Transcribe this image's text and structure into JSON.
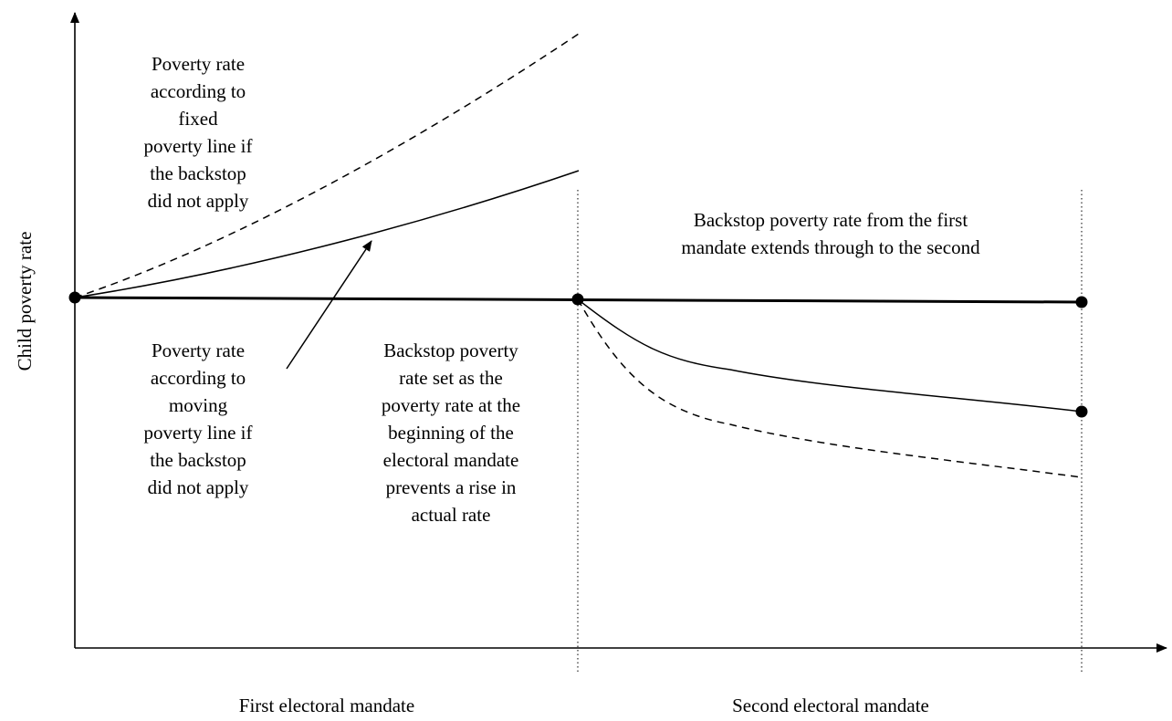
{
  "axes": {
    "y_label": "Child poverty rate",
    "x_labels": [
      "First electoral mandate",
      "Second electoral mandate"
    ]
  },
  "annotations": {
    "fixed_line": [
      "Poverty rate",
      "according to",
      "fixed",
      "poverty line if",
      "the backstop",
      "did  not apply"
    ],
    "moving_line": [
      "Poverty rate",
      "according to",
      "moving",
      "poverty line if",
      "the backstop",
      "did not apply"
    ],
    "backstop_set": [
      "Backstop poverty",
      "rate set as the",
      "poverty rate at the",
      "beginning of the",
      "electoral mandate",
      "prevents a rise in",
      "actual rate"
    ],
    "backstop_extends": [
      "Backstop poverty rate from the first",
      "mandate extends through to the second"
    ]
  },
  "colors": {
    "ink": "#000000",
    "background": "#ffffff"
  }
}
